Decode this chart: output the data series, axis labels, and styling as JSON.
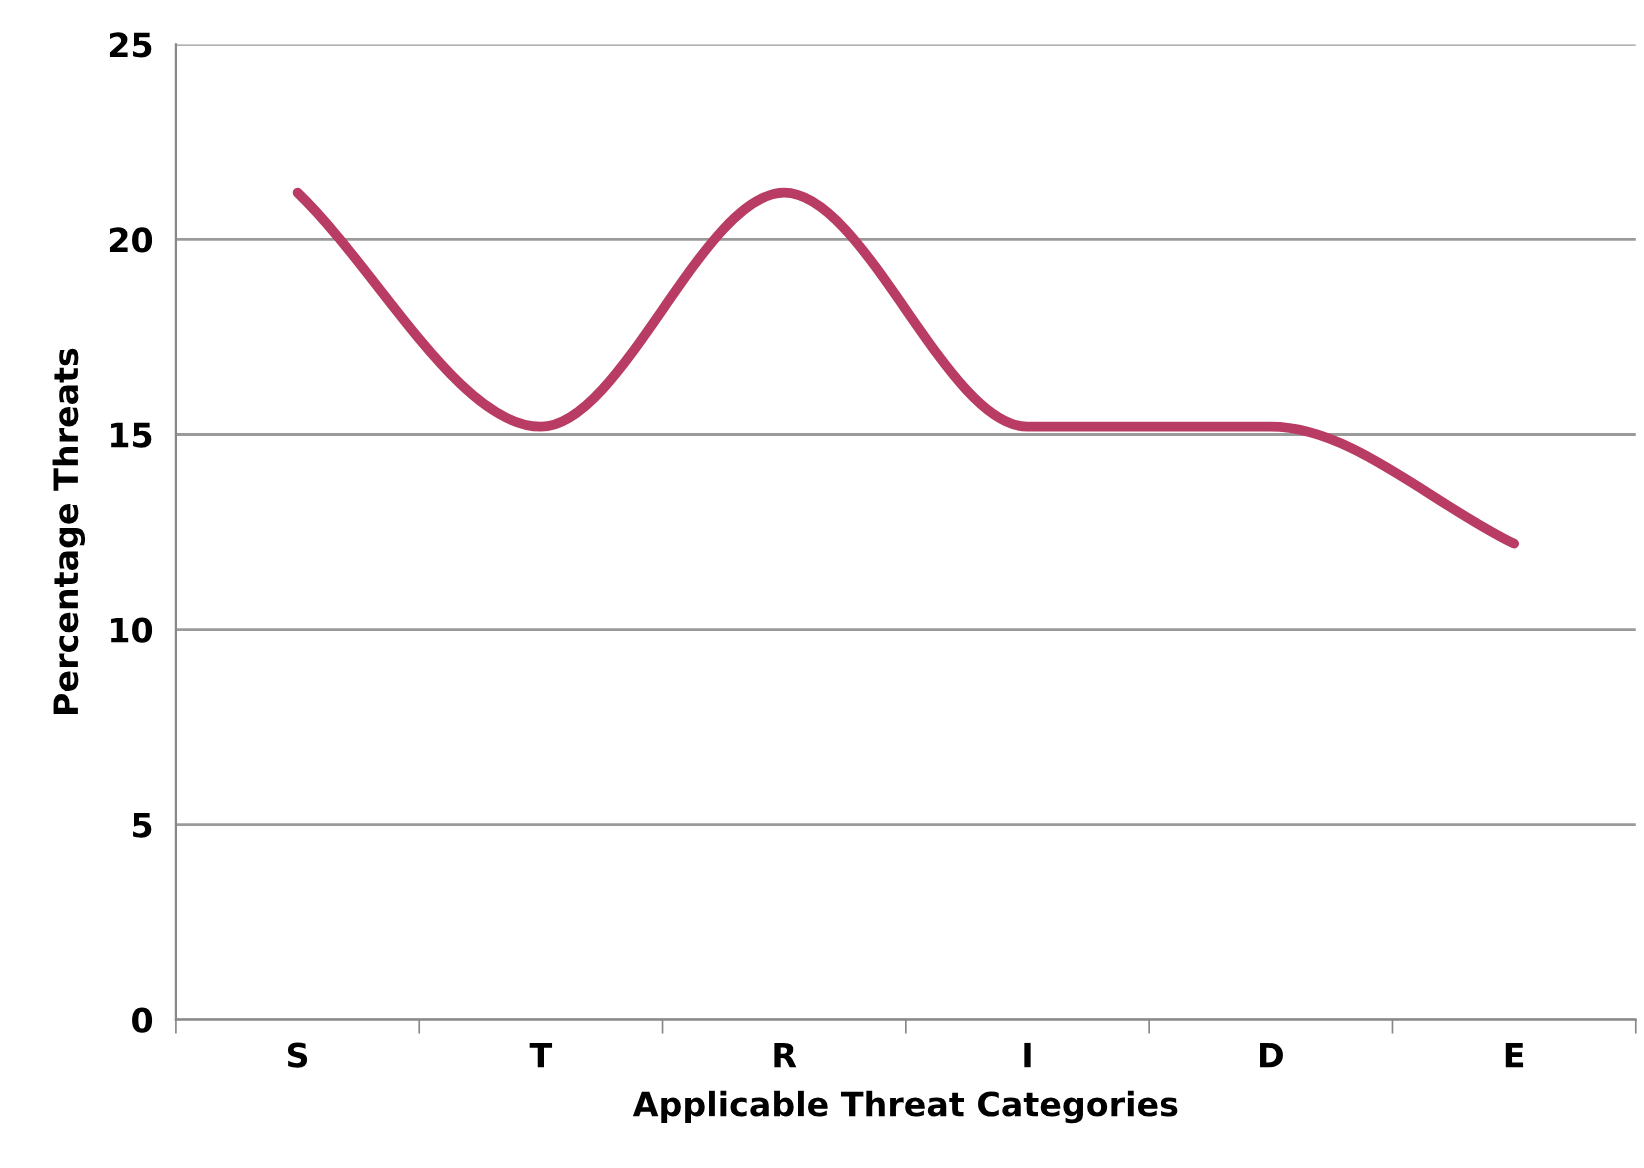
{
  "chart_data": {
    "type": "line",
    "xlabel": "Applicable Threat Categories",
    "ylabel": "Percentage Threats",
    "categories": [
      "S",
      "T",
      "R",
      "I",
      "D",
      "E"
    ],
    "series": [
      {
        "color": "#b83c63",
        "values": [
          21.2,
          15.2,
          21.2,
          15.2,
          15.2,
          12.2
        ]
      }
    ],
    "ylim": [
      0,
      25
    ],
    "yticks": [
      0,
      5,
      10,
      15,
      20,
      25
    ],
    "grid": "y",
    "marker": "none",
    "line_style": "solid"
  }
}
